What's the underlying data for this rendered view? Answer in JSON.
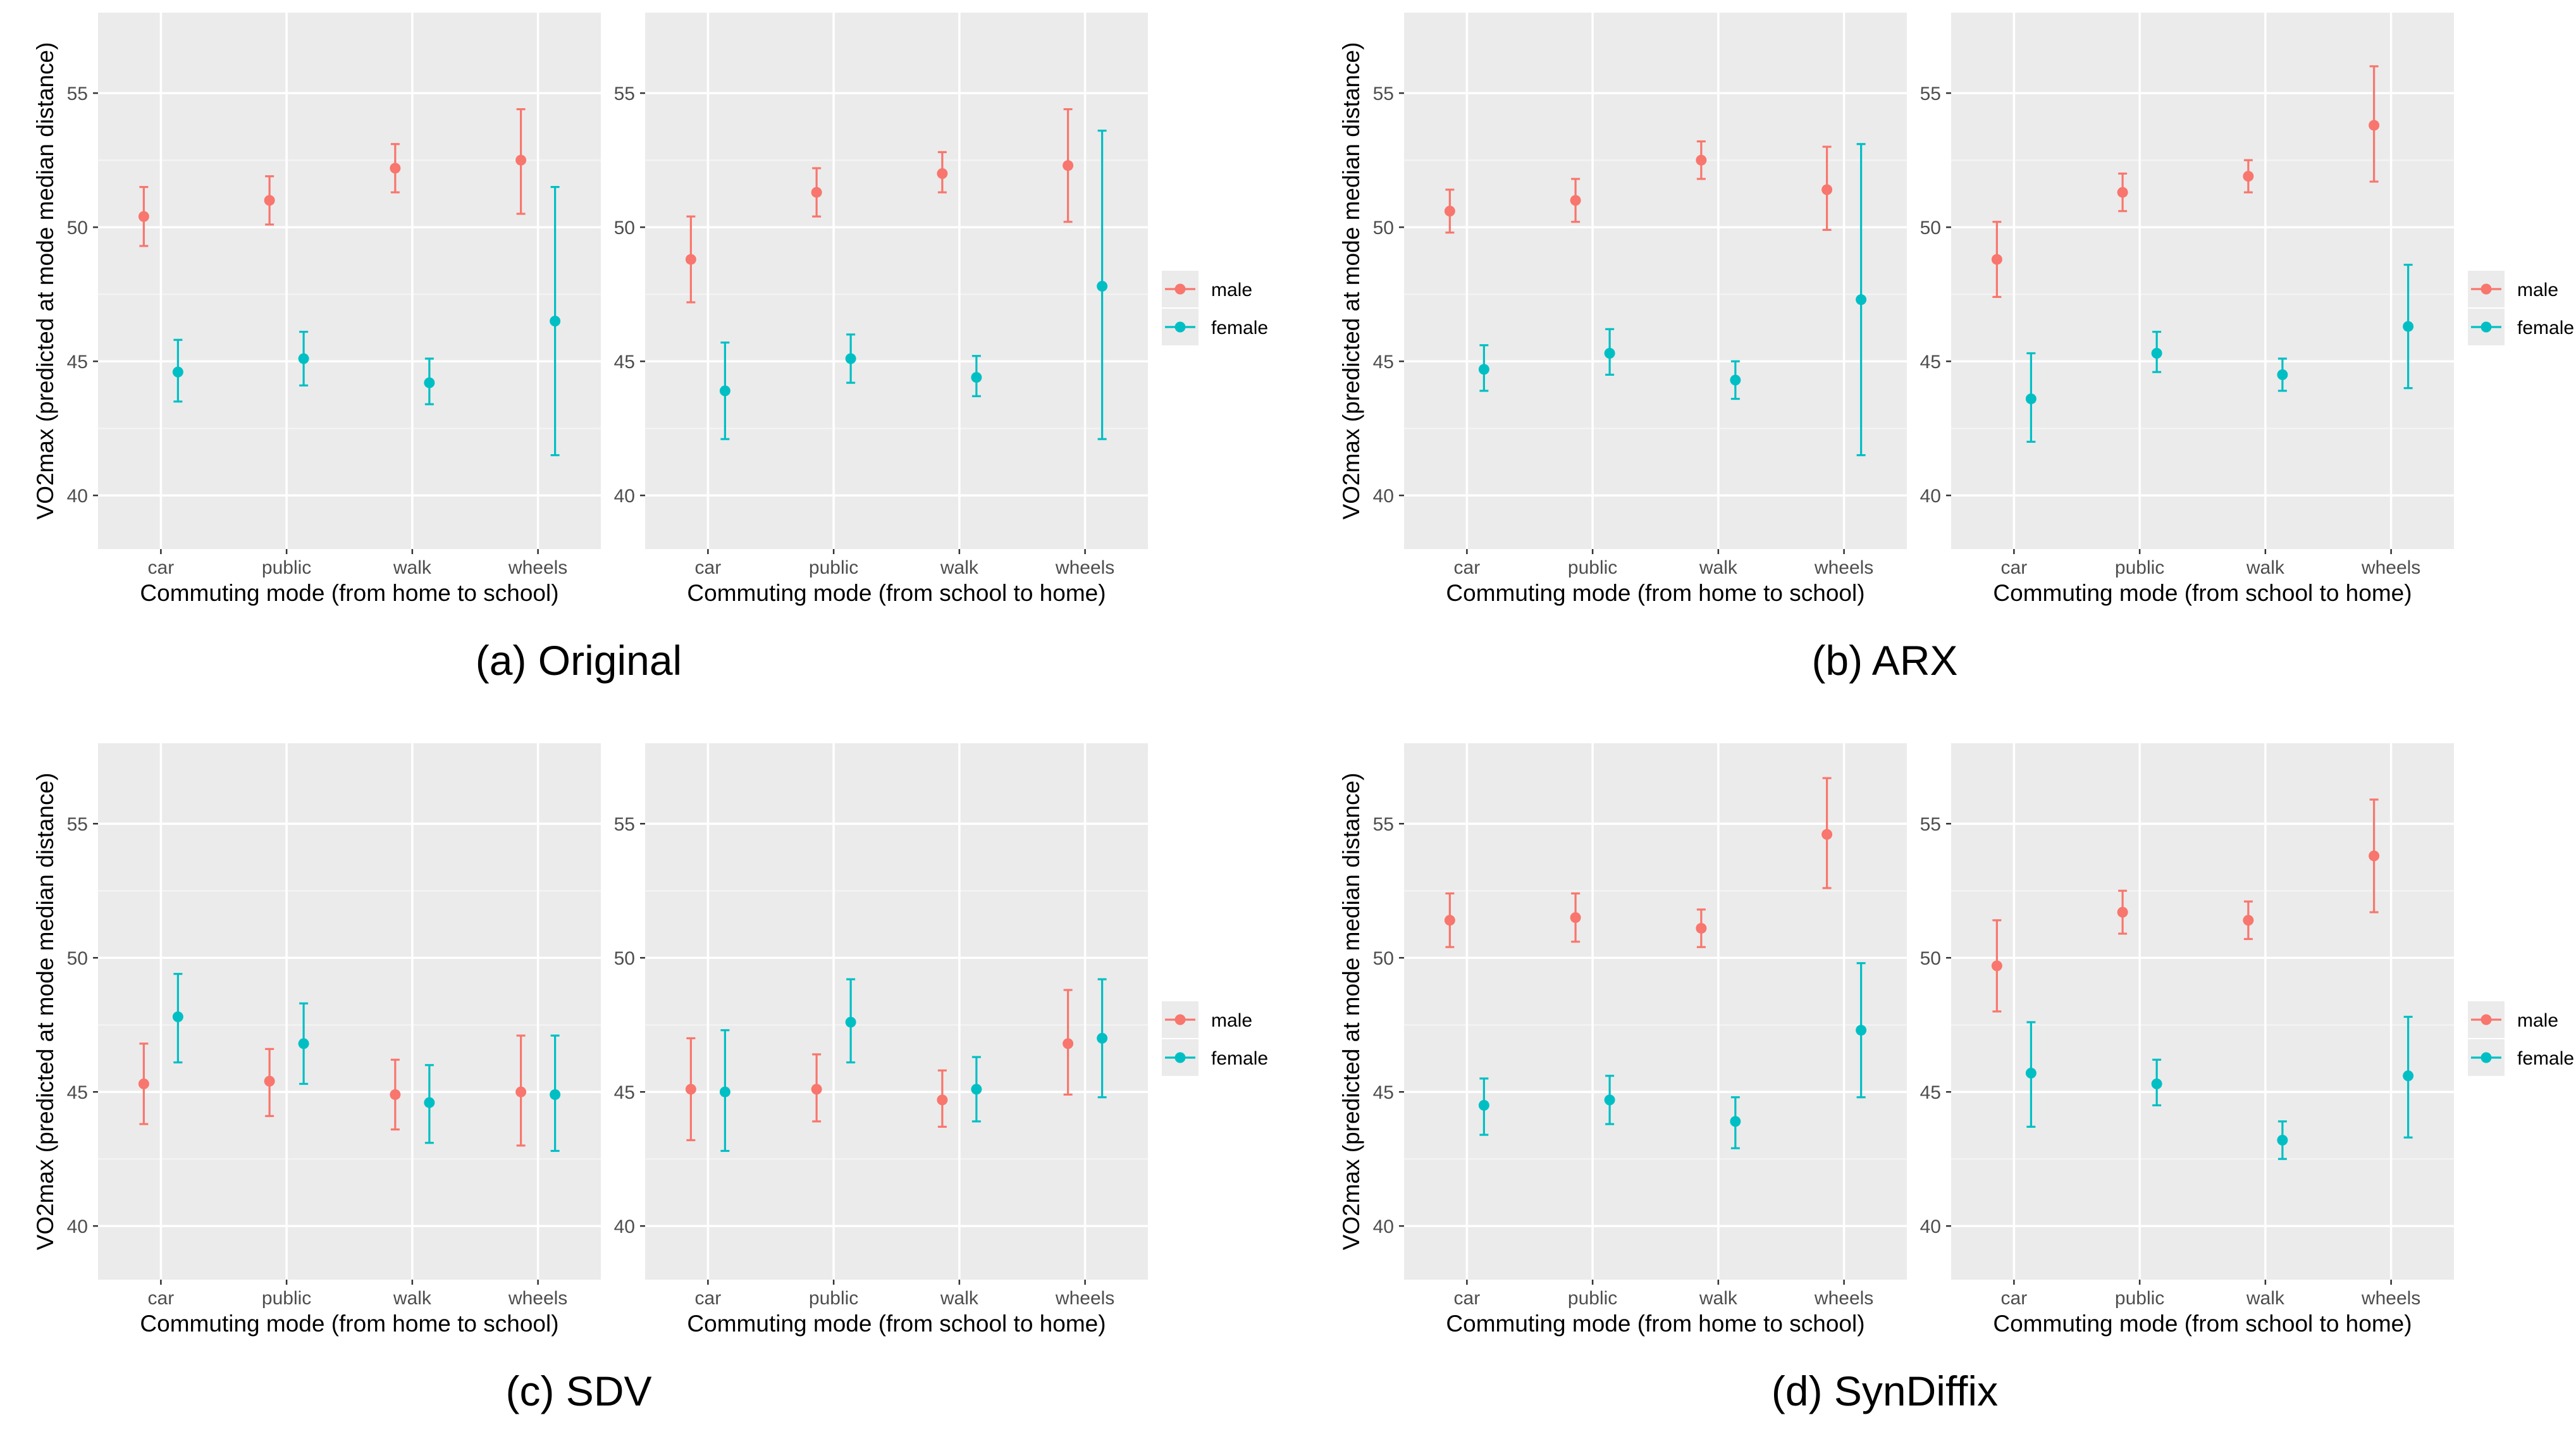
{
  "chart_data": [
    {
      "type": "scatter",
      "caption": "(a) Original",
      "ylabel": "VO2max (predicted at mode median distance)",
      "ylim": [
        38,
        58
      ],
      "yticks": [
        40,
        45,
        50,
        55
      ],
      "categories": [
        "car",
        "public",
        "walk",
        "wheels"
      ],
      "legend": [
        "male",
        "female"
      ],
      "legend_position": "right",
      "grid": true,
      "panels": [
        {
          "xlabel": "Commuting mode (from home to school)",
          "series": [
            {
              "name": "male",
              "color": "#F8766D",
              "mean": [
                50.4,
                51.0,
                52.2,
                52.5
              ],
              "lower": [
                49.3,
                50.1,
                51.3,
                50.5
              ],
              "upper": [
                51.5,
                51.9,
                53.1,
                54.4
              ]
            },
            {
              "name": "female",
              "color": "#00BFC4",
              "mean": [
                44.6,
                45.1,
                44.2,
                46.5
              ],
              "lower": [
                43.5,
                44.1,
                43.4,
                41.5
              ],
              "upper": [
                45.8,
                46.1,
                45.1,
                51.5
              ]
            }
          ]
        },
        {
          "xlabel": "Commuting mode (from school to home)",
          "series": [
            {
              "name": "male",
              "color": "#F8766D",
              "mean": [
                48.8,
                51.3,
                52.0,
                52.3
              ],
              "lower": [
                47.2,
                50.4,
                51.3,
                50.2
              ],
              "upper": [
                50.4,
                52.2,
                52.8,
                54.4
              ]
            },
            {
              "name": "female",
              "color": "#00BFC4",
              "mean": [
                43.9,
                45.1,
                44.4,
                47.8
              ],
              "lower": [
                42.1,
                44.2,
                43.7,
                42.1
              ],
              "upper": [
                45.7,
                46.0,
                45.2,
                53.6
              ]
            }
          ]
        }
      ]
    },
    {
      "type": "scatter",
      "caption": "(b) ARX",
      "ylabel": "VO2max (predicted at mode median distance)",
      "ylim": [
        38,
        58
      ],
      "yticks": [
        40,
        45,
        50,
        55
      ],
      "categories": [
        "car",
        "public",
        "walk",
        "wheels"
      ],
      "legend": [
        "male",
        "female"
      ],
      "legend_position": "right",
      "grid": true,
      "panels": [
        {
          "xlabel": "Commuting mode (from home to school)",
          "series": [
            {
              "name": "male",
              "color": "#F8766D",
              "mean": [
                50.6,
                51.0,
                52.5,
                51.4
              ],
              "lower": [
                49.8,
                50.2,
                51.8,
                49.9
              ],
              "upper": [
                51.4,
                51.8,
                53.2,
                53.0
              ]
            },
            {
              "name": "female",
              "color": "#00BFC4",
              "mean": [
                44.7,
                45.3,
                44.3,
                47.3
              ],
              "lower": [
                43.9,
                44.5,
                43.6,
                41.5
              ],
              "upper": [
                45.6,
                46.2,
                45.0,
                53.1
              ]
            }
          ]
        },
        {
          "xlabel": "Commuting mode (from school to home)",
          "series": [
            {
              "name": "male",
              "color": "#F8766D",
              "mean": [
                48.8,
                51.3,
                51.9,
                53.8
              ],
              "lower": [
                47.4,
                50.6,
                51.3,
                51.7
              ],
              "upper": [
                50.2,
                52.0,
                52.5,
                56.0
              ]
            },
            {
              "name": "female",
              "color": "#00BFC4",
              "mean": [
                43.6,
                45.3,
                44.5,
                46.3
              ],
              "lower": [
                42.0,
                44.6,
                43.9,
                44.0
              ],
              "upper": [
                45.3,
                46.1,
                45.1,
                48.6
              ]
            }
          ]
        }
      ]
    },
    {
      "type": "scatter",
      "caption": "(c) SDV",
      "ylabel": "VO2max (predicted at mode median distance)",
      "ylim": [
        38,
        58
      ],
      "yticks": [
        40,
        45,
        50,
        55
      ],
      "categories": [
        "car",
        "public",
        "walk",
        "wheels"
      ],
      "legend": [
        "male",
        "female"
      ],
      "legend_position": "right",
      "grid": true,
      "panels": [
        {
          "xlabel": "Commuting mode (from home to school)",
          "series": [
            {
              "name": "male",
              "color": "#F8766D",
              "mean": [
                45.3,
                45.4,
                44.9,
                45.0
              ],
              "lower": [
                43.8,
                44.1,
                43.6,
                43.0
              ],
              "upper": [
                46.8,
                46.6,
                46.2,
                47.1
              ]
            },
            {
              "name": "female",
              "color": "#00BFC4",
              "mean": [
                47.8,
                46.8,
                44.6,
                44.9
              ],
              "lower": [
                46.1,
                45.3,
                43.1,
                42.8
              ],
              "upper": [
                49.4,
                48.3,
                46.0,
                47.1
              ]
            }
          ]
        },
        {
          "xlabel": "Commuting mode (from school to home)",
          "series": [
            {
              "name": "male",
              "color": "#F8766D",
              "mean": [
                45.1,
                45.1,
                44.7,
                46.8
              ],
              "lower": [
                43.2,
                43.9,
                43.7,
                44.9
              ],
              "upper": [
                47.0,
                46.4,
                45.8,
                48.8
              ]
            },
            {
              "name": "female",
              "color": "#00BFC4",
              "mean": [
                45.0,
                47.6,
                45.1,
                47.0
              ],
              "lower": [
                42.8,
                46.1,
                43.9,
                44.8
              ],
              "upper": [
                47.3,
                49.2,
                46.3,
                49.2
              ]
            }
          ]
        }
      ]
    },
    {
      "type": "scatter",
      "caption": "(d) SynDiffix",
      "ylabel": "VO2max (predicted at mode median distance)",
      "ylim": [
        38,
        58
      ],
      "yticks": [
        40,
        45,
        50,
        55
      ],
      "categories": [
        "car",
        "public",
        "walk",
        "wheels"
      ],
      "legend": [
        "male",
        "female"
      ],
      "legend_position": "right",
      "grid": true,
      "panels": [
        {
          "xlabel": "Commuting mode (from home to school)",
          "series": [
            {
              "name": "male",
              "color": "#F8766D",
              "mean": [
                51.4,
                51.5,
                51.1,
                54.6
              ],
              "lower": [
                50.4,
                50.6,
                50.4,
                52.6
              ],
              "upper": [
                52.4,
                52.4,
                51.8,
                56.7
              ]
            },
            {
              "name": "female",
              "color": "#00BFC4",
              "mean": [
                44.5,
                44.7,
                43.9,
                47.3
              ],
              "lower": [
                43.4,
                43.8,
                42.9,
                44.8
              ],
              "upper": [
                45.5,
                45.6,
                44.8,
                49.8
              ]
            }
          ]
        },
        {
          "xlabel": "Commuting mode (from school to home)",
          "series": [
            {
              "name": "male",
              "color": "#F8766D",
              "mean": [
                49.7,
                51.7,
                51.4,
                53.8
              ],
              "lower": [
                48.0,
                50.9,
                50.7,
                51.7
              ],
              "upper": [
                51.4,
                52.5,
                52.1,
                55.9
              ]
            },
            {
              "name": "female",
              "color": "#00BFC4",
              "mean": [
                45.7,
                45.3,
                43.2,
                45.6
              ],
              "lower": [
                43.7,
                44.5,
                42.5,
                43.3
              ],
              "upper": [
                47.6,
                46.2,
                43.9,
                47.8
              ]
            }
          ]
        }
      ]
    }
  ]
}
